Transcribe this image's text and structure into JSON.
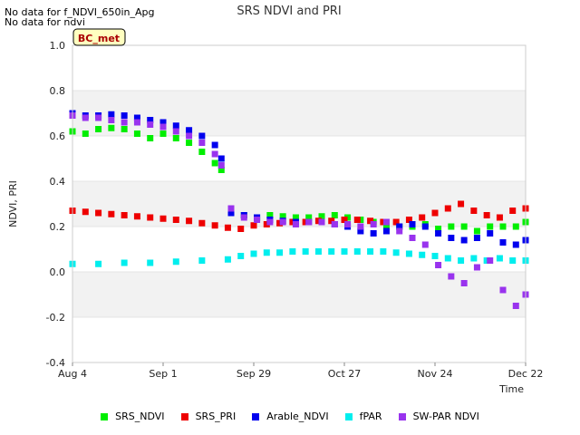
{
  "notes": [
    "No data for f_NDVI_650in_Apg",
    "No data for ndvi"
  ],
  "chart_data": {
    "type": "scatter",
    "title": "SRS NDVI and PRI",
    "xlabel": "Time",
    "ylabel": "NDVI, PRI",
    "site_label": "BC_met",
    "ylim": [
      -0.4,
      1.0
    ],
    "yticks": [
      -0.4,
      -0.2,
      0.0,
      0.2,
      0.4,
      0.6,
      0.8,
      1.0
    ],
    "ytick_labels": [
      "-0.4",
      "-0.2",
      "0.0",
      "0.2",
      "0.4",
      "0.6",
      "0.8",
      "1.0"
    ],
    "xlim": [
      "2023-08-04",
      "2023-12-22"
    ],
    "xticks": [
      "2023-08-04",
      "2023-09-01",
      "2023-09-29",
      "2023-10-27",
      "2023-11-24",
      "2023-12-22"
    ],
    "xtick_labels": [
      "Aug 4",
      "Sep 1",
      "Sep 29",
      "Oct 27",
      "Nov 24",
      "Dec 22"
    ],
    "grid": "alternating horizontal bands",
    "legend_position": "bottom",
    "series": [
      {
        "name": "SRS_NDVI",
        "color": "#00ee00",
        "x": [
          "2023-08-04",
          "2023-08-08",
          "2023-08-12",
          "2023-08-16",
          "2023-08-20",
          "2023-08-24",
          "2023-08-28",
          "2023-09-01",
          "2023-09-05",
          "2023-09-09",
          "2023-09-13",
          "2023-09-17",
          "2023-09-19",
          "2023-09-22",
          "2023-09-26",
          "2023-09-30",
          "2023-10-04",
          "2023-10-08",
          "2023-10-12",
          "2023-10-16",
          "2023-10-20",
          "2023-10-24",
          "2023-10-28",
          "2023-11-01",
          "2023-11-05",
          "2023-11-09",
          "2023-11-13",
          "2023-11-17",
          "2023-11-21",
          "2023-11-25",
          "2023-11-29",
          "2023-12-03",
          "2023-12-07",
          "2023-12-11",
          "2023-12-15",
          "2023-12-19",
          "2023-12-22"
        ],
        "y": [
          0.62,
          0.61,
          0.63,
          0.635,
          0.63,
          0.61,
          0.59,
          0.61,
          0.59,
          0.57,
          0.53,
          0.48,
          0.45,
          0.27,
          0.25,
          0.24,
          0.25,
          0.245,
          0.24,
          0.24,
          0.245,
          0.25,
          0.24,
          0.23,
          0.22,
          0.2,
          0.2,
          0.2,
          0.21,
          0.19,
          0.2,
          0.2,
          0.18,
          0.2,
          0.2,
          0.2,
          0.22
        ]
      },
      {
        "name": "SRS_PRI",
        "color": "#ee0000",
        "x": [
          "2023-08-04",
          "2023-08-08",
          "2023-08-12",
          "2023-08-16",
          "2023-08-20",
          "2023-08-24",
          "2023-08-28",
          "2023-09-01",
          "2023-09-05",
          "2023-09-09",
          "2023-09-13",
          "2023-09-17",
          "2023-09-21",
          "2023-09-25",
          "2023-09-29",
          "2023-10-03",
          "2023-10-07",
          "2023-10-11",
          "2023-10-15",
          "2023-10-19",
          "2023-10-23",
          "2023-10-27",
          "2023-10-31",
          "2023-11-04",
          "2023-11-08",
          "2023-11-12",
          "2023-11-16",
          "2023-11-20",
          "2023-11-24",
          "2023-11-28",
          "2023-12-02",
          "2023-12-06",
          "2023-12-10",
          "2023-12-14",
          "2023-12-18",
          "2023-12-22"
        ],
        "y": [
          0.27,
          0.265,
          0.26,
          0.255,
          0.25,
          0.245,
          0.24,
          0.235,
          0.23,
          0.225,
          0.215,
          0.205,
          0.195,
          0.19,
          0.205,
          0.21,
          0.215,
          0.22,
          0.22,
          0.225,
          0.225,
          0.23,
          0.23,
          0.225,
          0.22,
          0.22,
          0.23,
          0.24,
          0.26,
          0.28,
          0.3,
          0.27,
          0.25,
          0.24,
          0.27,
          0.28
        ]
      },
      {
        "name": "Arable_NDVI",
        "color": "#0000ee",
        "x": [
          "2023-08-04",
          "2023-08-08",
          "2023-08-12",
          "2023-08-16",
          "2023-08-20",
          "2023-08-24",
          "2023-08-28",
          "2023-09-01",
          "2023-09-05",
          "2023-09-09",
          "2023-09-13",
          "2023-09-17",
          "2023-09-19",
          "2023-09-22",
          "2023-09-26",
          "2023-09-30",
          "2023-10-04",
          "2023-10-08",
          "2023-10-12",
          "2023-10-16",
          "2023-10-20",
          "2023-10-24",
          "2023-10-28",
          "2023-11-01",
          "2023-11-05",
          "2023-11-09",
          "2023-11-13",
          "2023-11-17",
          "2023-11-21",
          "2023-11-25",
          "2023-11-29",
          "2023-12-03",
          "2023-12-07",
          "2023-12-11",
          "2023-12-15",
          "2023-12-19",
          "2023-12-22"
        ],
        "y": [
          0.7,
          0.69,
          0.69,
          0.695,
          0.69,
          0.68,
          0.67,
          0.66,
          0.645,
          0.625,
          0.6,
          0.56,
          0.5,
          0.26,
          0.25,
          0.24,
          0.23,
          0.225,
          0.22,
          0.22,
          0.22,
          0.21,
          0.2,
          0.18,
          0.17,
          0.18,
          0.2,
          0.21,
          0.2,
          0.17,
          0.15,
          0.14,
          0.15,
          0.17,
          0.13,
          0.12,
          0.14
        ]
      },
      {
        "name": "fPAR",
        "color": "#00eeee",
        "x": [
          "2023-08-04",
          "2023-08-12",
          "2023-08-20",
          "2023-08-28",
          "2023-09-05",
          "2023-09-13",
          "2023-09-21",
          "2023-09-25",
          "2023-09-29",
          "2023-10-03",
          "2023-10-07",
          "2023-10-11",
          "2023-10-15",
          "2023-10-19",
          "2023-10-23",
          "2023-10-27",
          "2023-10-31",
          "2023-11-04",
          "2023-11-08",
          "2023-11-12",
          "2023-11-16",
          "2023-11-20",
          "2023-11-24",
          "2023-11-28",
          "2023-12-02",
          "2023-12-06",
          "2023-12-10",
          "2023-12-14",
          "2023-12-18",
          "2023-12-22"
        ],
        "y": [
          0.035,
          0.035,
          0.04,
          0.04,
          0.045,
          0.05,
          0.055,
          0.07,
          0.08,
          0.085,
          0.085,
          0.09,
          0.09,
          0.09,
          0.09,
          0.09,
          0.09,
          0.09,
          0.09,
          0.085,
          0.08,
          0.075,
          0.07,
          0.06,
          0.05,
          0.06,
          0.05,
          0.06,
          0.05,
          0.05
        ]
      },
      {
        "name": "SW-PAR NDVI",
        "color": "#9933ee",
        "x": [
          "2023-08-04",
          "2023-08-08",
          "2023-08-12",
          "2023-08-16",
          "2023-08-20",
          "2023-08-24",
          "2023-08-28",
          "2023-09-01",
          "2023-09-05",
          "2023-09-09",
          "2023-09-13",
          "2023-09-17",
          "2023-09-19",
          "2023-09-22",
          "2023-09-26",
          "2023-09-30",
          "2023-10-04",
          "2023-10-08",
          "2023-10-12",
          "2023-10-16",
          "2023-10-20",
          "2023-10-24",
          "2023-10-28",
          "2023-11-01",
          "2023-11-05",
          "2023-11-09",
          "2023-11-13",
          "2023-11-17",
          "2023-11-21",
          "2023-11-25",
          "2023-11-29",
          "2023-12-03",
          "2023-12-07",
          "2023-12-11",
          "2023-12-15",
          "2023-12-19",
          "2023-12-22"
        ],
        "y": [
          0.69,
          0.68,
          0.68,
          0.67,
          0.66,
          0.66,
          0.65,
          0.64,
          0.62,
          0.6,
          0.57,
          0.52,
          0.47,
          0.28,
          0.24,
          0.23,
          0.22,
          0.22,
          0.21,
          0.22,
          0.22,
          0.21,
          0.21,
          0.2,
          0.21,
          0.22,
          0.18,
          0.15,
          0.12,
          0.03,
          -0.02,
          -0.05,
          0.02,
          0.05,
          -0.08,
          -0.15,
          -0.1
        ]
      }
    ]
  }
}
